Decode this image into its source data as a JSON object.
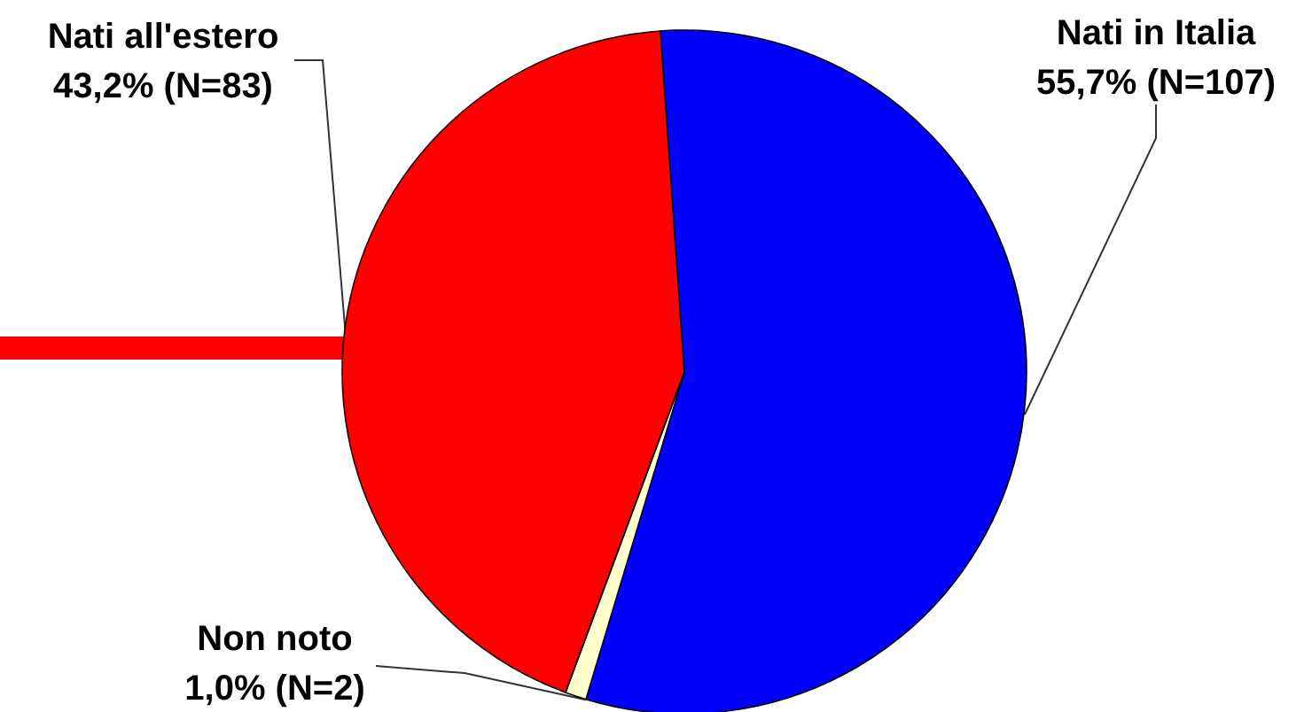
{
  "chart_data": {
    "type": "pie",
    "categories": [
      "Nati in Italia",
      "Non noto",
      "Nati all'estero"
    ],
    "values": [
      55.7,
      1.0,
      43.2
    ],
    "colors": [
      "#0000ff",
      "#ffffcc",
      "#ff0000"
    ],
    "value_labels": [
      "55,7% (N=107)",
      "1,0% (N=2)",
      "43,2% (N=83)"
    ],
    "legend": false
  }
}
